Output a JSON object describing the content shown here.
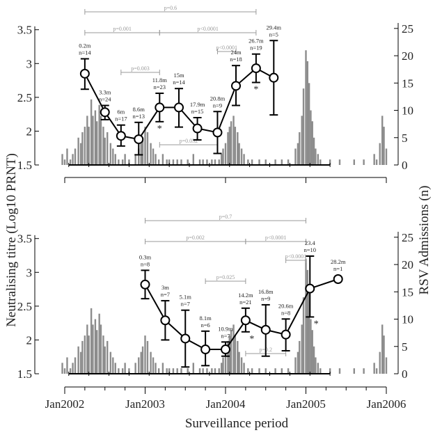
{
  "figure": {
    "y_left_label": "Neutralising titre (Log10 PRNT)",
    "y_right_label": "RSV Admissions (n)",
    "x_label": "Surveillance period",
    "x_ticks": [
      "Jan2002",
      "Jan2003",
      "Jan2004",
      "Jan2005",
      "Jan2006"
    ]
  },
  "colors": {
    "bars": "#8c8c8c",
    "series": "#000000",
    "brackets": "#9a9a9a"
  },
  "chart_data": [
    {
      "type": "line",
      "panel": "top",
      "ylim_left": [
        1.5,
        3.6
      ],
      "ylim_right": [
        0,
        26
      ],
      "left_ticks": [
        1.5,
        2,
        2.5,
        3,
        3.5
      ],
      "right_ticks": [
        0,
        5,
        10,
        15,
        20,
        25
      ],
      "series": [
        {
          "x": [
            2002.25,
            2002.5,
            2002.7,
            2002.92,
            2003.18,
            2003.42,
            2003.65,
            2003.9,
            2004.13,
            2004.38,
            2004.6
          ],
          "y": [
            2.85,
            2.28,
            1.93,
            1.88,
            2.35,
            2.35,
            2.04,
            1.98,
            2.67,
            2.93,
            2.79
          ],
          "ylow": [
            2.62,
            2.17,
            1.78,
            1.65,
            2.14,
            2.06,
            1.87,
            1.67,
            2.38,
            2.72,
            2.24
          ],
          "yhigh": [
            3.07,
            2.38,
            2.09,
            2.13,
            2.56,
            2.63,
            2.2,
            2.29,
            2.97,
            3.14,
            3.34
          ]
        }
      ],
      "point_labels": [
        [
          "0.2m",
          "n=14"
        ],
        [
          "3.3m",
          "n=24"
        ],
        [
          "6m",
          "n=17"
        ],
        [
          "8.6m",
          "n=13"
        ],
        [
          "11.8m",
          "n=23"
        ],
        [
          "15m",
          "n=14"
        ],
        [
          "17.9m",
          "n=15"
        ],
        [
          "20.8m",
          "n=9"
        ],
        [
          "24m",
          "n=18"
        ],
        [
          "26.7m",
          "n=19"
        ],
        [
          "29.4m",
          "n=5"
        ]
      ],
      "significance_marks": [
        {
          "x": 2003.18,
          "text": "*"
        },
        {
          "x": 2004.38,
          "text": "*"
        }
      ],
      "brackets": [
        {
          "from": 2002.25,
          "to": 2004.38,
          "label": "p=0.6"
        },
        {
          "from": 2002.25,
          "to": 2003.18,
          "label": "p=0.001"
        },
        {
          "from": 2003.18,
          "to": 2004.38,
          "label": "p<0.0001"
        },
        {
          "from": 2002.7,
          "to": 2003.18,
          "label": "p=0.003"
        },
        {
          "from": 2003.9,
          "to": 2004.13,
          "label": "p<0.0001"
        },
        {
          "from": 2003.18,
          "to": 2003.9,
          "label": "p=0.032"
        }
      ],
      "bars": [
        [
          2001.97,
          2
        ],
        [
          2002.0,
          1
        ],
        [
          2002.03,
          3
        ],
        [
          2002.07,
          1
        ],
        [
          2002.1,
          2
        ],
        [
          2002.13,
          3
        ],
        [
          2002.17,
          5
        ],
        [
          2002.2,
          4
        ],
        [
          2002.22,
          6
        ],
        [
          2002.25,
          7
        ],
        [
          2002.28,
          9
        ],
        [
          2002.3,
          7
        ],
        [
          2002.33,
          12
        ],
        [
          2002.35,
          9
        ],
        [
          2002.38,
          10
        ],
        [
          2002.4,
          8
        ],
        [
          2002.43,
          11
        ],
        [
          2002.45,
          9
        ],
        [
          2002.48,
          7
        ],
        [
          2002.5,
          5
        ],
        [
          2002.53,
          6
        ],
        [
          2002.57,
          4
        ],
        [
          2002.6,
          3
        ],
        [
          2002.63,
          2
        ],
        [
          2002.67,
          1
        ],
        [
          2002.72,
          1
        ],
        [
          2002.75,
          2
        ],
        [
          2002.8,
          1
        ],
        [
          2002.88,
          2
        ],
        [
          2002.92,
          3
        ],
        [
          2002.95,
          4
        ],
        [
          2002.97,
          5
        ],
        [
          2003.0,
          7
        ],
        [
          2003.03,
          6
        ],
        [
          2003.07,
          4
        ],
        [
          2003.1,
          3
        ],
        [
          2003.13,
          2
        ],
        [
          2003.17,
          1
        ],
        [
          2003.22,
          2
        ],
        [
          2003.27,
          1
        ],
        [
          2003.3,
          1
        ],
        [
          2003.35,
          1
        ],
        [
          2003.4,
          1
        ],
        [
          2003.45,
          1
        ],
        [
          2003.53,
          1
        ],
        [
          2003.6,
          2
        ],
        [
          2003.68,
          1
        ],
        [
          2003.72,
          1
        ],
        [
          2003.77,
          1
        ],
        [
          2003.83,
          1
        ],
        [
          2003.87,
          1
        ],
        [
          2003.92,
          1
        ],
        [
          2003.95,
          2
        ],
        [
          2003.97,
          3
        ],
        [
          2004.0,
          4
        ],
        [
          2004.03,
          6
        ],
        [
          2004.05,
          7
        ],
        [
          2004.07,
          8
        ],
        [
          2004.1,
          9
        ],
        [
          2004.12,
          7
        ],
        [
          2004.15,
          6
        ],
        [
          2004.17,
          4
        ],
        [
          2004.2,
          3
        ],
        [
          2004.23,
          2
        ],
        [
          2004.28,
          1
        ],
        [
          2004.33,
          1
        ],
        [
          2004.42,
          1
        ],
        [
          2004.5,
          1
        ],
        [
          2004.62,
          1
        ],
        [
          2004.7,
          1
        ],
        [
          2004.78,
          1
        ],
        [
          2004.87,
          3
        ],
        [
          2004.9,
          4
        ],
        [
          2004.92,
          6
        ],
        [
          2004.95,
          9
        ],
        [
          2004.97,
          14
        ],
        [
          2005.0,
          21
        ],
        [
          2005.02,
          19
        ],
        [
          2005.04,
          15
        ],
        [
          2005.06,
          10
        ],
        [
          2005.08,
          8
        ],
        [
          2005.1,
          5
        ],
        [
          2005.12,
          3
        ],
        [
          2005.15,
          2
        ],
        [
          2005.18,
          1
        ],
        [
          2005.3,
          1
        ],
        [
          2005.42,
          1
        ],
        [
          2005.6,
          1
        ],
        [
          2005.72,
          1
        ],
        [
          2005.85,
          2
        ],
        [
          2005.88,
          1
        ],
        [
          2005.92,
          4
        ],
        [
          2005.95,
          9
        ],
        [
          2005.97,
          7
        ],
        [
          2006.0,
          3
        ]
      ]
    },
    {
      "type": "line",
      "panel": "bottom",
      "ylim_left": [
        1.5,
        3.6
      ],
      "ylim_right": [
        0,
        26
      ],
      "left_ticks": [
        1.5,
        2,
        2.5,
        3,
        3.5
      ],
      "right_ticks": [
        0,
        5,
        10,
        15,
        20,
        25
      ],
      "series": [
        {
          "x": [
            2003.0,
            2003.25,
            2003.5,
            2003.75,
            2004.0,
            2004.25,
            2004.5,
            2004.75,
            2005.05,
            2005.4
          ],
          "y": [
            2.82,
            2.29,
            2.02,
            1.86,
            1.86,
            2.29,
            2.15,
            2.08,
            2.76,
            2.9
          ],
          "ylow": [
            2.61,
            2.0,
            1.6,
            1.62,
            1.76,
            2.12,
            1.76,
            1.84,
            2.34,
            null
          ],
          "yhigh": [
            3.03,
            2.58,
            2.44,
            2.13,
            1.97,
            2.47,
            2.52,
            2.31,
            3.24,
            null
          ]
        }
      ],
      "point_labels": [
        [
          "0.3m",
          "n=8"
        ],
        [
          "3m",
          "n=7"
        ],
        [
          "5.1m",
          "n=7"
        ],
        [
          "8.1m",
          "n=6"
        ],
        [
          "10.9m",
          "n=7"
        ],
        [
          "14.2m",
          "n=21"
        ],
        [
          "16.8m",
          "n=9"
        ],
        [
          "20.6m",
          "n=8"
        ],
        [
          "23.4",
          "n=10"
        ],
        [
          "28.2m",
          "n=1"
        ]
      ],
      "significance_marks": [
        {
          "x": 2004.25,
          "text": "*"
        },
        {
          "x": 2005.05,
          "text": "*"
        }
      ],
      "brackets": [
        {
          "from": 2003.0,
          "to": 2005.0,
          "label": "p=0.7"
        },
        {
          "from": 2003.0,
          "to": 2004.25,
          "label": "p=0.002"
        },
        {
          "from": 2004.25,
          "to": 2005.0,
          "label": "p<0.0001"
        },
        {
          "from": 2003.75,
          "to": 2004.25,
          "label": "p=0.025"
        },
        {
          "from": 2004.75,
          "to": 2005.0,
          "label": "p<0.0001"
        },
        {
          "from": 2004.25,
          "to": 2004.75,
          "label": "p=0.2"
        }
      ],
      "bars": [
        [
          2001.97,
          2
        ],
        [
          2002.0,
          1
        ],
        [
          2002.03,
          3
        ],
        [
          2002.07,
          1
        ],
        [
          2002.1,
          2
        ],
        [
          2002.13,
          3
        ],
        [
          2002.17,
          5
        ],
        [
          2002.2,
          4
        ],
        [
          2002.22,
          6
        ],
        [
          2002.25,
          7
        ],
        [
          2002.28,
          9
        ],
        [
          2002.3,
          7
        ],
        [
          2002.33,
          12
        ],
        [
          2002.35,
          9
        ],
        [
          2002.38,
          10
        ],
        [
          2002.4,
          8
        ],
        [
          2002.43,
          11
        ],
        [
          2002.45,
          9
        ],
        [
          2002.48,
          7
        ],
        [
          2002.5,
          5
        ],
        [
          2002.53,
          6
        ],
        [
          2002.57,
          4
        ],
        [
          2002.6,
          3
        ],
        [
          2002.63,
          2
        ],
        [
          2002.67,
          1
        ],
        [
          2002.72,
          1
        ],
        [
          2002.75,
          2
        ],
        [
          2002.8,
          1
        ],
        [
          2002.88,
          2
        ],
        [
          2002.92,
          3
        ],
        [
          2002.95,
          4
        ],
        [
          2002.97,
          5
        ],
        [
          2003.0,
          7
        ],
        [
          2003.03,
          6
        ],
        [
          2003.07,
          4
        ],
        [
          2003.1,
          3
        ],
        [
          2003.13,
          2
        ],
        [
          2003.17,
          1
        ],
        [
          2003.22,
          2
        ],
        [
          2003.27,
          1
        ],
        [
          2003.3,
          1
        ],
        [
          2003.35,
          1
        ],
        [
          2003.4,
          1
        ],
        [
          2003.45,
          1
        ],
        [
          2003.53,
          1
        ],
        [
          2003.6,
          2
        ],
        [
          2003.68,
          1
        ],
        [
          2003.72,
          1
        ],
        [
          2003.77,
          1
        ],
        [
          2003.83,
          1
        ],
        [
          2003.87,
          1
        ],
        [
          2003.92,
          1
        ],
        [
          2003.95,
          2
        ],
        [
          2003.97,
          3
        ],
        [
          2004.0,
          4
        ],
        [
          2004.03,
          6
        ],
        [
          2004.05,
          7
        ],
        [
          2004.07,
          8
        ],
        [
          2004.1,
          9
        ],
        [
          2004.12,
          7
        ],
        [
          2004.15,
          6
        ],
        [
          2004.17,
          4
        ],
        [
          2004.2,
          3
        ],
        [
          2004.23,
          2
        ],
        [
          2004.28,
          1
        ],
        [
          2004.33,
          1
        ],
        [
          2004.42,
          1
        ],
        [
          2004.5,
          1
        ],
        [
          2004.62,
          1
        ],
        [
          2004.7,
          1
        ],
        [
          2004.78,
          1
        ],
        [
          2004.87,
          3
        ],
        [
          2004.9,
          4
        ],
        [
          2004.92,
          6
        ],
        [
          2004.95,
          9
        ],
        [
          2004.97,
          14
        ],
        [
          2005.0,
          21
        ],
        [
          2005.02,
          19
        ],
        [
          2005.04,
          15
        ],
        [
          2005.06,
          10
        ],
        [
          2005.08,
          8
        ],
        [
          2005.1,
          5
        ],
        [
          2005.12,
          3
        ],
        [
          2005.15,
          2
        ],
        [
          2005.18,
          1
        ],
        [
          2005.3,
          1
        ],
        [
          2005.42,
          1
        ],
        [
          2005.6,
          1
        ],
        [
          2005.72,
          1
        ],
        [
          2005.85,
          2
        ],
        [
          2005.88,
          1
        ],
        [
          2005.92,
          4
        ],
        [
          2005.95,
          9
        ],
        [
          2005.97,
          7
        ],
        [
          2006.0,
          3
        ]
      ]
    }
  ]
}
